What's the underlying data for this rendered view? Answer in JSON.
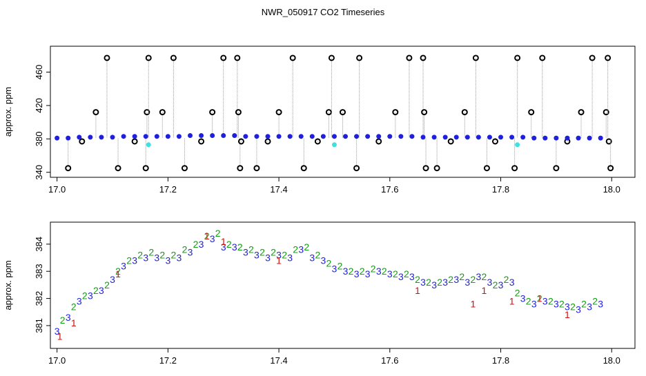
{
  "chart_data": [
    {
      "type": "scatter",
      "title": "NWR_050917  CO2 Timeseries",
      "ylabel": "approx. ppm",
      "xlim": [
        16.988,
        18.042
      ],
      "ylim": [
        334,
        491
      ],
      "xticks": [
        {
          "value": 17,
          "label": "17.0"
        },
        {
          "value": 17.2,
          "label": "17.2"
        },
        {
          "value": 17.4,
          "label": "17.4"
        },
        {
          "value": 17.6,
          "label": "17.6"
        },
        {
          "value": 17.8,
          "label": "17.8"
        },
        {
          "value": 18,
          "label": "18.0"
        }
      ],
      "yticks": [
        340,
        380,
        420,
        460
      ],
      "series": [
        {
          "color": "#1f1fe0",
          "marker": "circle",
          "x": [
            17.0,
            17.02,
            17.04,
            17.06,
            17.08,
            17.1,
            17.12,
            17.14,
            17.16,
            17.18,
            17.2,
            17.22,
            17.24,
            17.26,
            17.28,
            17.3,
            17.32,
            17.34,
            17.36,
            17.38,
            17.4,
            17.42,
            17.44,
            17.46,
            17.48,
            17.5,
            17.52,
            17.54,
            17.56,
            17.58,
            17.6,
            17.62,
            17.64,
            17.66,
            17.68,
            17.7,
            17.72,
            17.74,
            17.76,
            17.78,
            17.8,
            17.82,
            17.84,
            17.86,
            17.88,
            17.9,
            17.92,
            17.94,
            17.96,
            17.98
          ],
          "values": [
            381,
            381,
            382,
            382,
            382,
            382,
            383,
            383,
            383,
            383,
            383,
            383,
            384,
            384,
            384,
            384,
            384,
            383,
            383,
            383,
            383,
            383,
            383,
            383,
            383,
            383,
            383,
            383,
            383,
            383,
            383,
            383,
            383,
            382,
            382,
            382,
            382,
            382,
            382,
            382,
            382,
            382,
            382,
            381,
            381,
            381,
            381,
            381,
            381,
            381
          ]
        },
        {
          "color": "#000000",
          "marker": "ring",
          "spikes": true,
          "spike_color": "#999999",
          "x": [
            17.02,
            17.045,
            17.07,
            17.09,
            17.11,
            17.14,
            17.16,
            17.162,
            17.165,
            17.19,
            17.21,
            17.23,
            17.26,
            17.28,
            17.3,
            17.325,
            17.327,
            17.33,
            17.332,
            17.36,
            17.38,
            17.4,
            17.425,
            17.445,
            17.47,
            17.49,
            17.495,
            17.515,
            17.545,
            17.54,
            17.58,
            17.61,
            17.635,
            17.66,
            17.662,
            17.665,
            17.685,
            17.71,
            17.735,
            17.755,
            17.775,
            17.79,
            17.825,
            17.83,
            17.855,
            17.875,
            17.9,
            17.92,
            17.945,
            17.965,
            17.99,
            17.993,
            17.995,
            17.998
          ],
          "values": [
            345,
            377,
            412,
            477,
            345,
            377,
            345,
            412,
            477,
            412,
            477,
            345,
            377,
            412,
            477,
            477,
            412,
            345,
            377,
            345,
            377,
            412,
            477,
            345,
            377,
            412,
            477,
            412,
            477,
            345,
            377,
            412,
            477,
            477,
            412,
            345,
            345,
            377,
            412,
            477,
            345,
            377,
            345,
            477,
            412,
            477,
            345,
            377,
            412,
            477,
            412,
            477,
            377,
            345
          ]
        },
        {
          "color": "#40e0e0",
          "marker": "circle",
          "x": [
            17.165,
            17.5,
            17.83
          ],
          "values": [
            373,
            373,
            373
          ]
        }
      ]
    },
    {
      "type": "text-scatter",
      "ylabel": "approx. ppm",
      "xlim": [
        16.988,
        18.042
      ],
      "ylim": [
        380.16,
        384.81
      ],
      "xticks": [
        {
          "value": 17,
          "label": "17.0"
        },
        {
          "value": 17.2,
          "label": "17.2"
        },
        {
          "value": 17.4,
          "label": "17.4"
        },
        {
          "value": 17.6,
          "label": "17.6"
        },
        {
          "value": 17.8,
          "label": "17.8"
        },
        {
          "value": 18,
          "label": "18.0"
        }
      ],
      "yticks": [
        381,
        382,
        383,
        384
      ],
      "series": [
        {
          "marker": "3",
          "color": "#1f1fe0",
          "x": [
            17.0,
            17.02,
            17.04,
            17.06,
            17.08,
            17.1,
            17.12,
            17.14,
            17.16,
            17.18,
            17.2,
            17.22,
            17.24,
            17.26,
            17.28,
            17.3,
            17.32,
            17.34,
            17.36,
            17.38,
            17.4,
            17.42,
            17.44,
            17.46,
            17.48,
            17.5,
            17.52,
            17.54,
            17.56,
            17.58,
            17.6,
            17.62,
            17.64,
            17.66,
            17.68,
            17.7,
            17.72,
            17.74,
            17.76,
            17.78,
            17.8,
            17.82,
            17.84,
            17.86,
            17.88,
            17.9,
            17.92,
            17.94,
            17.96,
            17.98
          ],
          "values": [
            380.8,
            381.3,
            381.9,
            382.1,
            382.3,
            382.7,
            383.2,
            383.4,
            383.5,
            383.5,
            383.4,
            383.5,
            383.7,
            384.0,
            384.2,
            383.9,
            383.9,
            383.7,
            383.6,
            383.5,
            383.6,
            383.5,
            383.8,
            383.5,
            383.4,
            383.1,
            383.0,
            382.9,
            382.9,
            383.0,
            382.9,
            382.8,
            382.8,
            382.6,
            382.5,
            382.6,
            382.7,
            382.6,
            382.8,
            382.6,
            382.5,
            382.6,
            382.0,
            381.8,
            381.9,
            381.8,
            381.7,
            381.6,
            381.7,
            381.8
          ]
        },
        {
          "marker": "2",
          "color": "#10a010",
          "x": [
            17.01,
            17.03,
            17.05,
            17.07,
            17.09,
            17.11,
            17.13,
            17.15,
            17.17,
            17.19,
            17.21,
            17.23,
            17.25,
            17.27,
            17.29,
            17.31,
            17.33,
            17.35,
            17.37,
            17.39,
            17.41,
            17.43,
            17.45,
            17.47,
            17.49,
            17.51,
            17.53,
            17.55,
            17.57,
            17.59,
            17.61,
            17.63,
            17.65,
            17.67,
            17.69,
            17.71,
            17.73,
            17.75,
            17.77,
            17.79,
            17.81,
            17.83,
            17.85,
            17.87,
            17.89,
            17.91,
            17.93,
            17.95,
            17.97
          ],
          "values": [
            381.2,
            381.7,
            382.1,
            382.3,
            382.5,
            383.0,
            383.4,
            383.6,
            383.7,
            383.6,
            383.6,
            383.8,
            384.0,
            384.3,
            384.4,
            384.0,
            383.9,
            383.8,
            383.7,
            383.7,
            383.6,
            383.8,
            383.9,
            383.6,
            383.3,
            383.2,
            383.0,
            383.0,
            383.1,
            383.0,
            382.9,
            382.9,
            382.7,
            382.6,
            382.6,
            382.7,
            382.8,
            382.7,
            382.8,
            382.5,
            382.7,
            382.2,
            381.9,
            382.0,
            381.9,
            381.8,
            381.7,
            381.8,
            381.9
          ]
        },
        {
          "marker": "1",
          "color": "#d01010",
          "x": [
            17.005,
            17.03,
            17.11,
            17.27,
            17.3,
            17.4,
            17.65,
            17.75,
            17.77,
            17.82,
            17.87,
            17.92
          ],
          "values": [
            380.6,
            381.1,
            382.9,
            384.3,
            384.1,
            383.4,
            382.3,
            381.8,
            382.3,
            381.9,
            382.0,
            381.4
          ]
        }
      ]
    }
  ]
}
